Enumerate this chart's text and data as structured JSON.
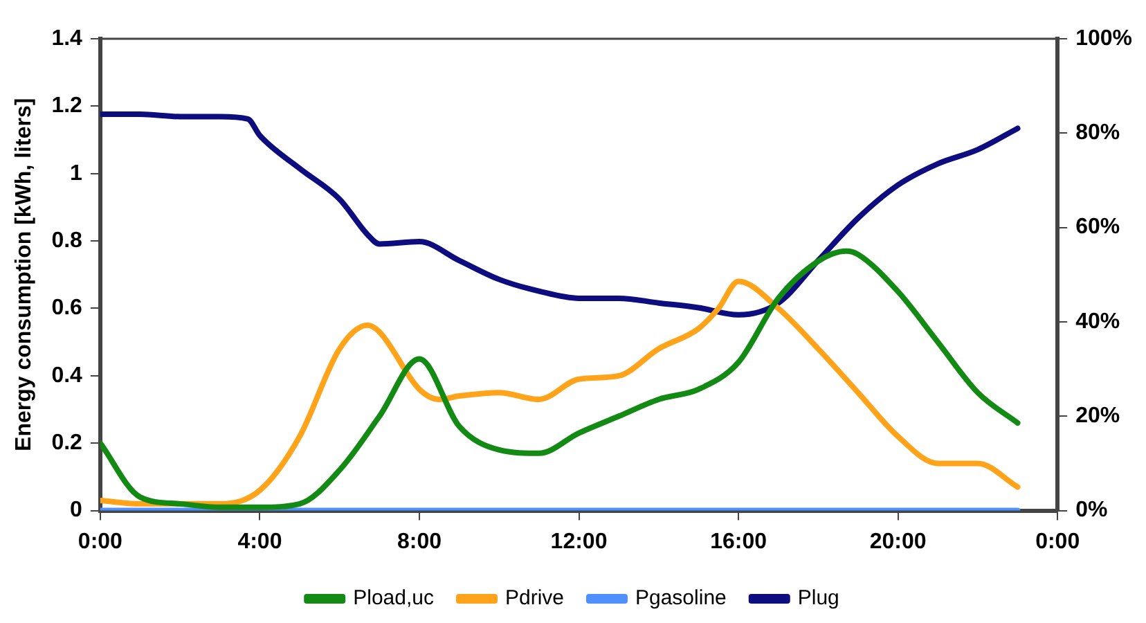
{
  "chart_data": {
    "type": "line",
    "ylabel": "Energy consumption [kWh, liters]",
    "xlim": [
      0,
      24
    ],
    "xticks": [
      {
        "value": 0,
        "label": "0:00"
      },
      {
        "value": 4,
        "label": "4:00"
      },
      {
        "value": 8,
        "label": "8:00"
      },
      {
        "value": 12,
        "label": "12:00"
      },
      {
        "value": 16,
        "label": "16:00"
      },
      {
        "value": 20,
        "label": "20:00"
      },
      {
        "value": 24,
        "label": "0:00"
      }
    ],
    "ylim": [
      0,
      1.4
    ],
    "yticks": [
      0,
      0.2,
      0.4,
      0.6,
      0.8,
      1,
      1.2,
      1.4
    ],
    "y2lim": [
      0,
      100
    ],
    "y2ticks": [
      {
        "value": 0,
        "label": "0%"
      },
      {
        "value": 20,
        "label": "20%"
      },
      {
        "value": 40,
        "label": "40%"
      },
      {
        "value": 60,
        "label": "60%"
      },
      {
        "value": 80,
        "label": "80%"
      },
      {
        "value": 100,
        "label": "100%"
      }
    ],
    "grid": false,
    "legend": "bottom",
    "marker": "none",
    "line_style": "solid",
    "series": [
      {
        "name": "Pload,uc",
        "color": "#138a13",
        "x": [
          0,
          1,
          2,
          3,
          4,
          5,
          6,
          7,
          8,
          9,
          10,
          11,
          12,
          13,
          14,
          15,
          16,
          17,
          18,
          18.7,
          19,
          20,
          21,
          22,
          23
        ],
        "values": [
          0.2,
          0.04,
          0.02,
          0.01,
          0.01,
          0.02,
          0.12,
          0.28,
          0.45,
          0.25,
          0.18,
          0.17,
          0.23,
          0.28,
          0.33,
          0.36,
          0.44,
          0.63,
          0.74,
          0.77,
          0.76,
          0.65,
          0.5,
          0.35,
          0.26
        ]
      },
      {
        "name": "Pdrive",
        "color": "#ffa31a",
        "x": [
          0,
          1,
          2,
          3,
          4,
          5,
          6,
          6.7,
          7,
          8,
          8.5,
          9,
          10,
          11,
          12,
          13,
          14,
          15,
          15.5,
          16,
          17,
          18,
          19,
          20,
          21,
          22,
          23
        ],
        "values": [
          0.03,
          0.02,
          0.02,
          0.02,
          0.06,
          0.22,
          0.48,
          0.55,
          0.53,
          0.36,
          0.33,
          0.34,
          0.35,
          0.33,
          0.39,
          0.4,
          0.48,
          0.54,
          0.6,
          0.68,
          0.6,
          0.48,
          0.35,
          0.22,
          0.14,
          0.14,
          0.07
        ]
      },
      {
        "name": "Pgasoline",
        "color": "#4f8fff",
        "x": [
          0,
          23
        ],
        "values": [
          0,
          0
        ]
      },
      {
        "name": "Plug",
        "color": "#0d0d80",
        "axis": "y2",
        "x": [
          0,
          1,
          2,
          3,
          3.7,
          4,
          5,
          6,
          6.7,
          7,
          8,
          9,
          10,
          11,
          12,
          13,
          14,
          15,
          16,
          17,
          18,
          19,
          20,
          21,
          22,
          23
        ],
        "values": [
          84,
          84,
          83.5,
          83.5,
          83,
          79.5,
          72.5,
          66,
          58.5,
          56.5,
          57,
          53,
          49,
          46.5,
          45,
          45,
          44,
          43,
          41.5,
          44,
          53,
          62,
          69,
          73.5,
          76.5,
          81
        ]
      }
    ]
  }
}
